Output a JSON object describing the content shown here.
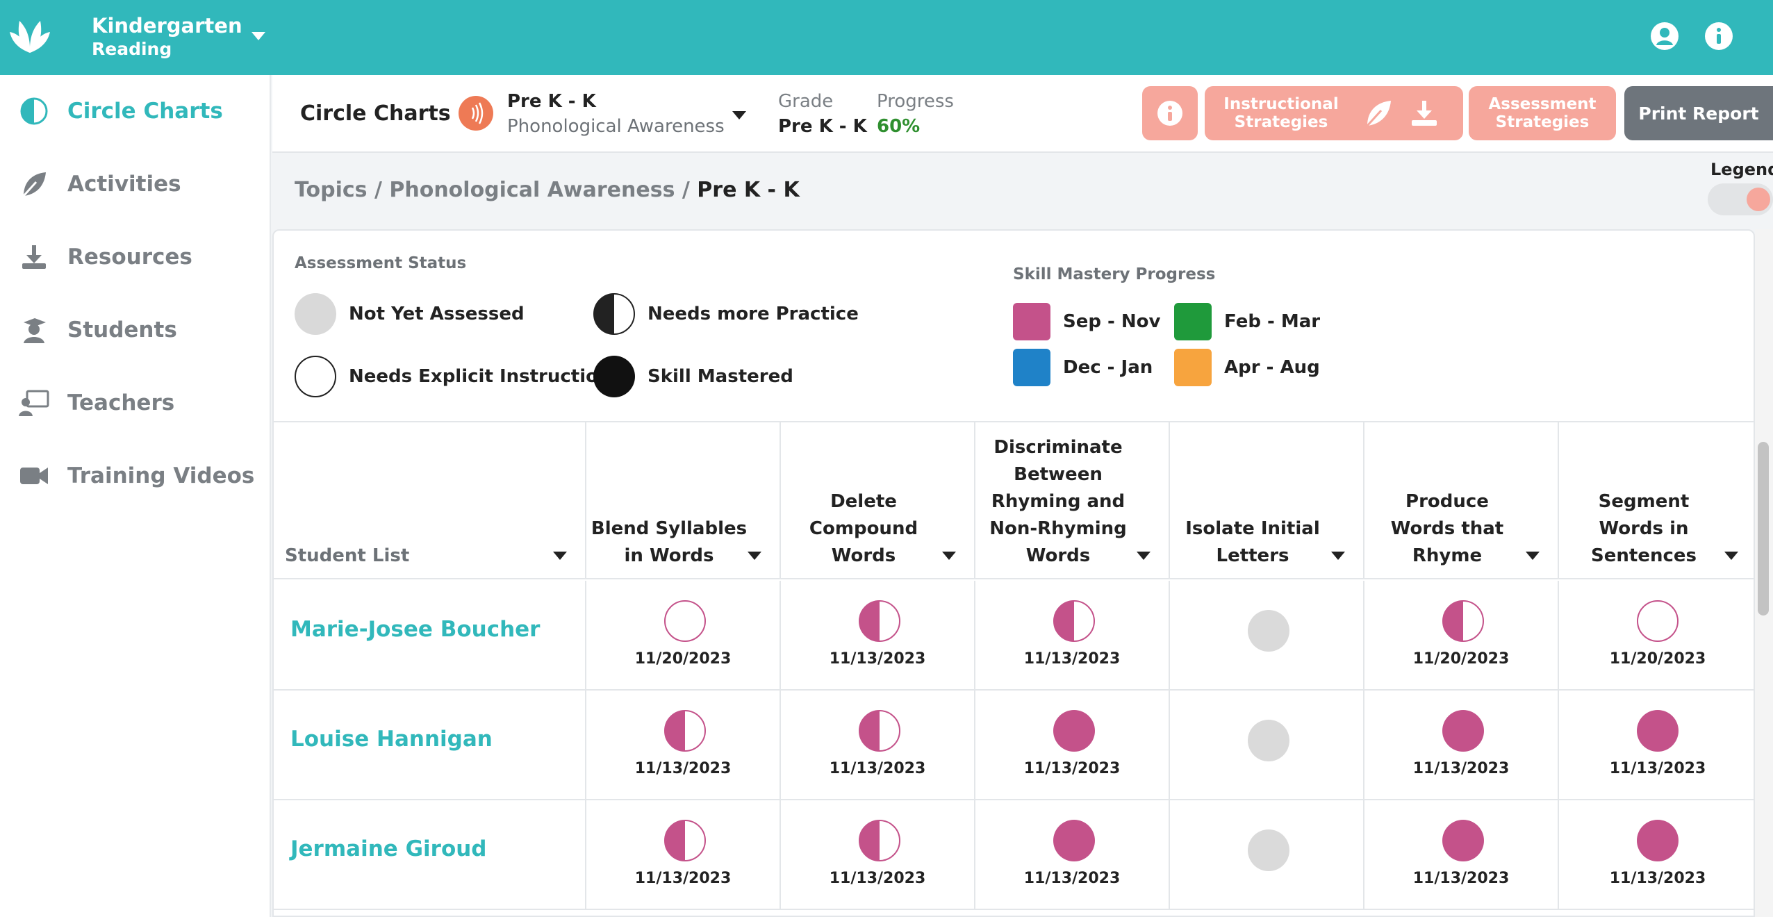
{
  "app": {
    "title": "Kindergarten",
    "subtitle": "Reading"
  },
  "colors": {
    "brand": "#31b8bb",
    "accent_button": "#f6a79c",
    "print_button": "#6e757c",
    "progress": "#2f8f2f",
    "topic_icon": "#ee7a55"
  },
  "sidebar": {
    "items": [
      {
        "label": "Circle Charts",
        "icon": "half-circle-icon",
        "active": true
      },
      {
        "label": "Activities",
        "icon": "leaf-icon",
        "active": false
      },
      {
        "label": "Resources",
        "icon": "download-icon",
        "active": false
      },
      {
        "label": "Students",
        "icon": "student-icon",
        "active": false
      },
      {
        "label": "Teachers",
        "icon": "teacher-icon",
        "active": false
      },
      {
        "label": "Training Videos",
        "icon": "video-camera-icon",
        "active": false
      }
    ]
  },
  "header": {
    "title": "Circle Charts",
    "topic_level": "Pre K - K",
    "topic_name": "Phonological Awareness",
    "grade_label": "Grade",
    "grade_value": "Pre K - K",
    "progress_label": "Progress",
    "progress_value": "60%",
    "instructional_label": "Instructional Strategies",
    "assessment_label": "Assessment Strategies",
    "print_label": "Print Report"
  },
  "breadcrumb": {
    "topics": "Topics",
    "topic": "Phonological Awareness",
    "current": "Pre K - K"
  },
  "legend": {
    "label": "Legend",
    "assessment_title": "Assessment Status",
    "statuses": [
      "Not Yet Assessed",
      "Needs more Practice",
      "Needs Explicit Instruction",
      "Skill Mastered"
    ],
    "mastery_title": "Skill Mastery Progress",
    "periods": [
      {
        "label": "Sep - Nov",
        "color": "#c4528a"
      },
      {
        "label": "Feb - Mar",
        "color": "#1f9a3b"
      },
      {
        "label": "Dec - Jan",
        "color": "#1f82c8"
      },
      {
        "label": "Apr - Aug",
        "color": "#f7a43e"
      }
    ]
  },
  "table": {
    "student_col": "Student List",
    "columns": [
      "Blend Syllables in Words",
      "Delete Compound Words",
      "Discriminate Between Rhyming and Non-Rhyming Words",
      "Isolate Initial Letters",
      "Produce Words that Rhyme",
      "Segment Words in Sentences"
    ],
    "rows": [
      {
        "name": "Marie-Josee Boucher",
        "cells": [
          {
            "status": "empty",
            "date": "11/20/2023"
          },
          {
            "status": "half",
            "date": "11/13/2023"
          },
          {
            "status": "half",
            "date": "11/13/2023"
          },
          {
            "status": "gray",
            "date": ""
          },
          {
            "status": "half",
            "date": "11/20/2023"
          },
          {
            "status": "empty",
            "date": "11/20/2023"
          }
        ]
      },
      {
        "name": "Louise Hannigan",
        "cells": [
          {
            "status": "half",
            "date": "11/13/2023"
          },
          {
            "status": "half",
            "date": "11/13/2023"
          },
          {
            "status": "full",
            "date": "11/13/2023"
          },
          {
            "status": "gray",
            "date": ""
          },
          {
            "status": "full",
            "date": "11/13/2023"
          },
          {
            "status": "full",
            "date": "11/13/2023"
          }
        ]
      },
      {
        "name": "Jermaine Giroud",
        "cells": [
          {
            "status": "half",
            "date": "11/13/2023"
          },
          {
            "status": "half",
            "date": "11/13/2023"
          },
          {
            "status": "full",
            "date": "11/13/2023"
          },
          {
            "status": "gray",
            "date": ""
          },
          {
            "status": "full",
            "date": "11/13/2023"
          },
          {
            "status": "full",
            "date": "11/13/2023"
          }
        ]
      }
    ]
  }
}
